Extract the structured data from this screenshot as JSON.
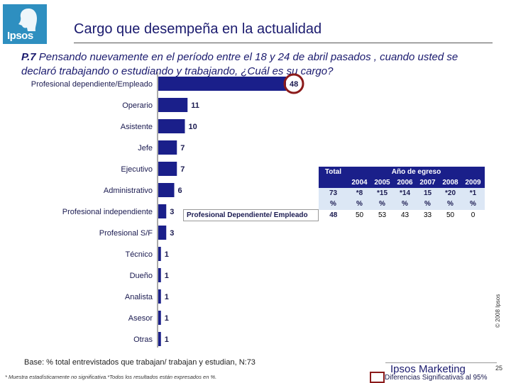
{
  "header": {
    "logo_text": "Ipsos",
    "title": "Cargo que desempeña en la actualidad"
  },
  "question": {
    "number": "P.7",
    "text": " Pensando nuevamente en el período entre el 18 y 24 de abril pasados , cuando usted se declaró trabajando o estudiando y trabajando, ¿Cuál es su cargo?"
  },
  "chart_data": {
    "type": "bar",
    "orientation": "horizontal",
    "categories": [
      "Profesional dependiente/Empleado",
      "Operario",
      "Asistente",
      "Jefe",
      "Ejecutivo",
      "Administrativo",
      "Profesional independiente",
      "Profesional S/F",
      "Técnico",
      "Dueño",
      "Analista",
      "Asesor",
      "Otras"
    ],
    "values": [
      48,
      11,
      10,
      7,
      7,
      6,
      3,
      3,
      1,
      1,
      1,
      1,
      1
    ],
    "highlighted": "Profesional dependiente/Empleado",
    "colors": {
      "bar": "#1a1f8a",
      "highlight_ring": "#8b1a1a"
    }
  },
  "table": {
    "group_header": "Año de egreso",
    "total_header": "Total",
    "years": [
      "2004",
      "2005",
      "2006",
      "2007",
      "2008",
      "2009"
    ],
    "n_row": {
      "total": "73",
      "years": [
        "*8",
        "*15",
        "*14",
        "15",
        "*20",
        "*1"
      ]
    },
    "pct_row": {
      "total": "%",
      "years": [
        "%",
        "%",
        "%",
        "%",
        "%",
        "%"
      ]
    },
    "data_row": {
      "label": "Profesional Dependiente/ Empleado",
      "total": "48",
      "years": [
        "50",
        "53",
        "43",
        "33",
        "50",
        "0"
      ]
    }
  },
  "footer": {
    "base": "Base: % total entrevistados que trabajan/ trabajan y estudian, N:73",
    "footnote": "* Muestra estadísticamente no significativa.*Todos los resultados están expresados en %.",
    "brand": "Ipsos Marketing",
    "page_number": "25",
    "legend": "Diferencias Significativas al 95%",
    "copyright": "© 2008 Ipsos"
  }
}
